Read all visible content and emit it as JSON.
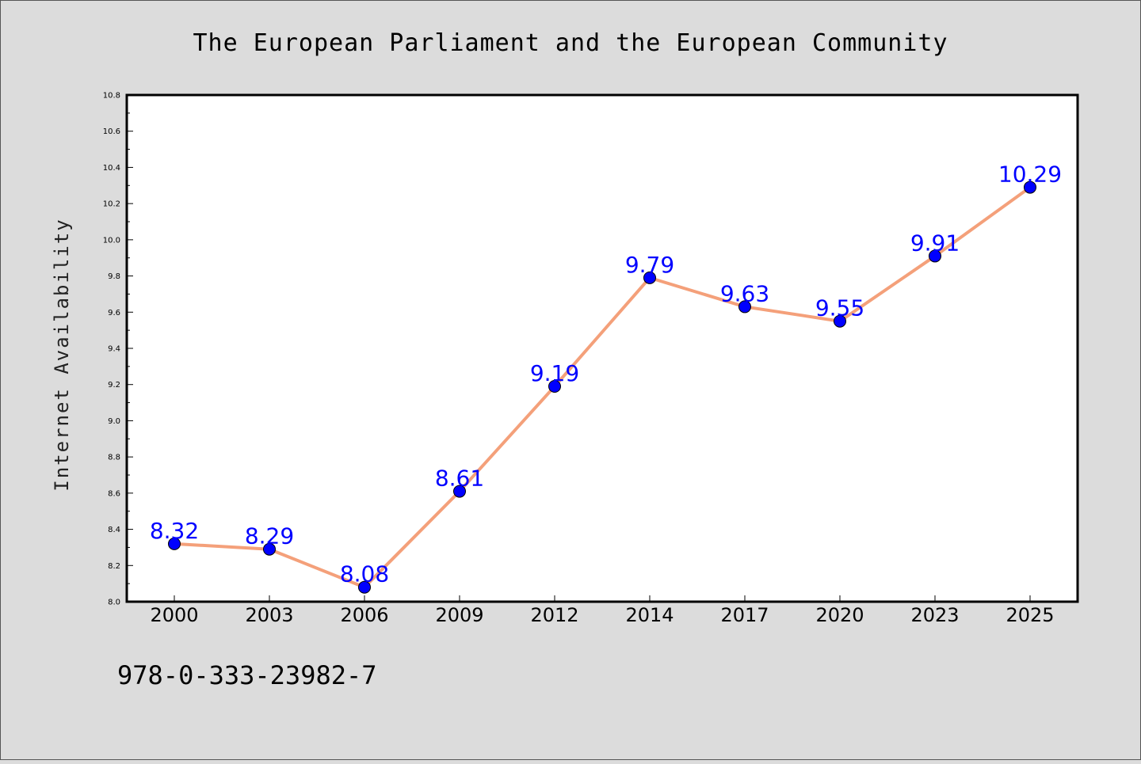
{
  "chart_data": {
    "type": "line",
    "title": "The European Parliament and the European Community",
    "xlabel": "",
    "ylabel": "Internet Availability",
    "categories": [
      "2000",
      "2003",
      "2006",
      "2009",
      "2012",
      "2014",
      "2017",
      "2020",
      "2023",
      "2025"
    ],
    "series": [
      {
        "values": [
          8.32,
          8.29,
          8.08,
          8.61,
          9.19,
          9.79,
          9.63,
          9.55,
          9.91,
          10.29
        ],
        "labels": [
          "8.32",
          "8.29",
          "8.08",
          "8.61",
          "9.19",
          "9.79",
          "9.63",
          "9.55",
          "9.91",
          "10.29"
        ],
        "line_color": "#f4a07a",
        "marker_color": "#0000ff"
      }
    ],
    "ylim": [
      8.0,
      10.8
    ],
    "yticks": [
      "8.0",
      "8.2",
      "8.4",
      "8.6",
      "8.8",
      "9.0",
      "9.2",
      "9.4",
      "9.6",
      "9.8",
      "10.0",
      "10.2",
      "10.4",
      "10.6",
      "10.8"
    ],
    "grid": false,
    "legend": "none",
    "data_label_color": "#0000ff"
  },
  "footer": {
    "isbn": "978-0-333-23982-7"
  },
  "colors": {
    "background": "#dcdcdc",
    "plot_background": "#ffffff"
  }
}
